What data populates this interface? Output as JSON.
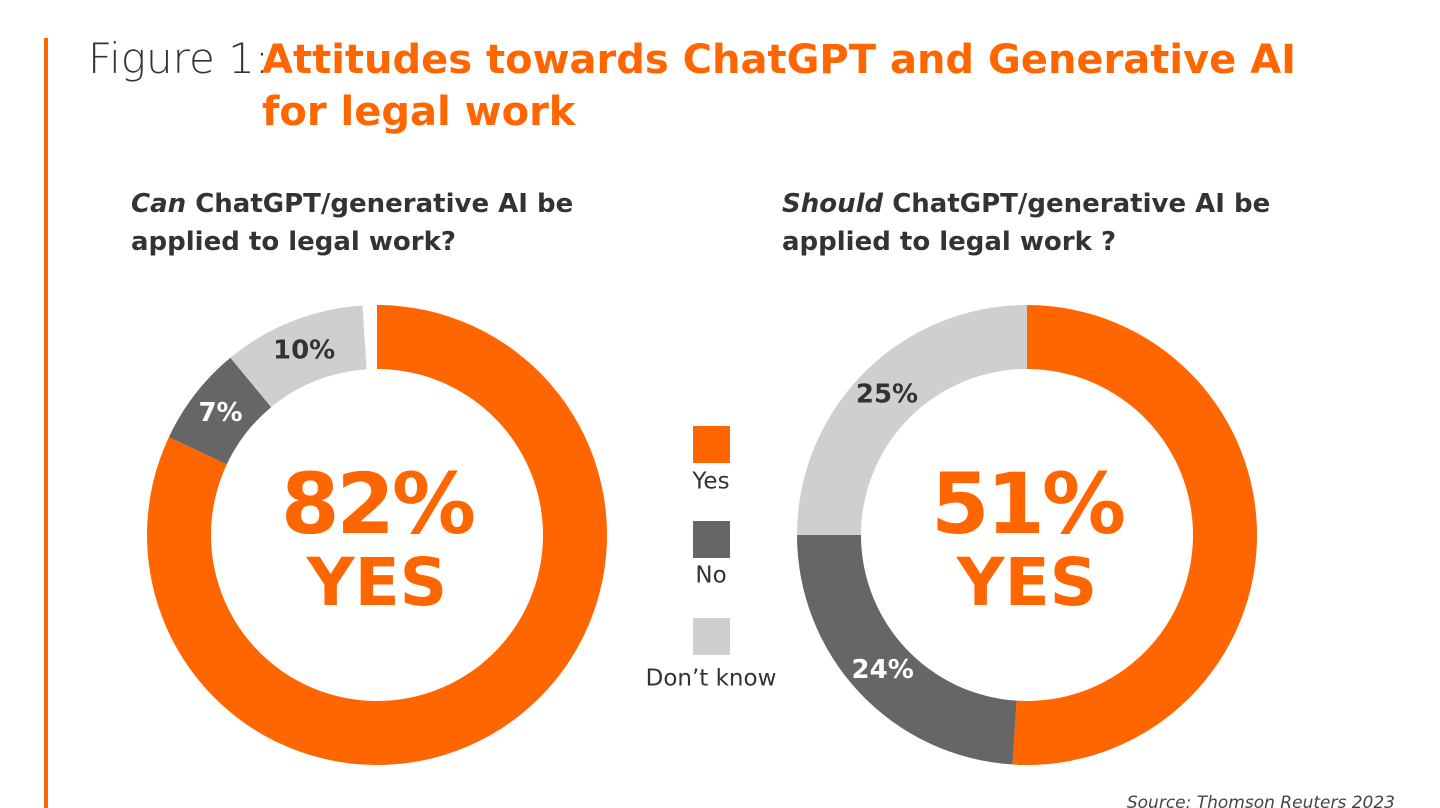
{
  "title_prefix": "Figure 1:",
  "title": "Attitudes towards ChatGPT and Generative AI for legal work",
  "legend": {
    "categories": [
      "Yes",
      "No",
      "Don’t know"
    ],
    "colors": [
      "#ff6600",
      "#666666",
      "#cfcfcf"
    ]
  },
  "source": "Source: Thomson Reuters 2023",
  "chart_data": [
    {
      "type": "donut",
      "subtitle_emphasis": "Can",
      "subtitle": "ChatGPT/generative AI be applied to legal work?",
      "values": [
        82,
        7,
        10
      ],
      "value_labels": [
        "82%",
        "7%",
        "10%"
      ],
      "center_label": "YES"
    },
    {
      "type": "donut",
      "subtitle_emphasis": "Should",
      "subtitle": "ChatGPT/generative AI be applied to legal work ?",
      "values": [
        51,
        24,
        25
      ],
      "value_labels": [
        "51%",
        "24%",
        "25%"
      ],
      "center_label": "YES"
    }
  ]
}
